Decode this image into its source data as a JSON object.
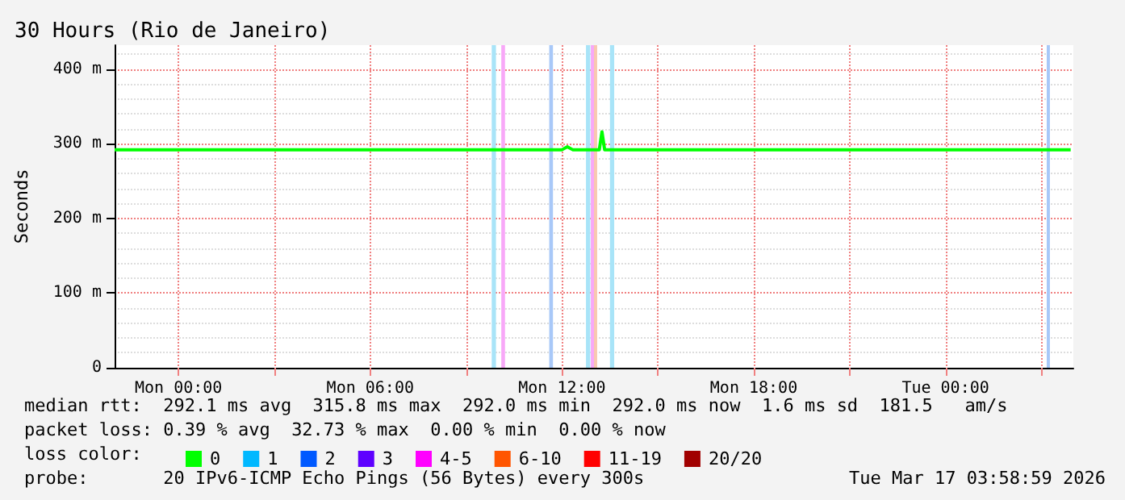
{
  "chart_data": {
    "type": "line",
    "title": "30 Hours (Rio de Janeiro)",
    "ylabel": "Seconds",
    "legend_title": "loss color:",
    "xlim": [
      "2026-03-15T22:00",
      "2026-03-17T04:00"
    ],
    "xticks": [
      {
        "value": "2026-03-16T00:00",
        "label": "Mon 00:00"
      },
      {
        "value": "2026-03-16T03:00",
        "label": null
      },
      {
        "value": "2026-03-16T06:00",
        "label": "Mon 06:00"
      },
      {
        "value": "2026-03-16T09:00",
        "label": null
      },
      {
        "value": "2026-03-16T12:00",
        "label": "Mon 12:00"
      },
      {
        "value": "2026-03-16T15:00",
        "label": null
      },
      {
        "value": "2026-03-16T18:00",
        "label": "Mon 18:00"
      },
      {
        "value": "2026-03-16T21:00",
        "label": null
      },
      {
        "value": "2026-03-17T00:00",
        "label": "Tue 00:00"
      },
      {
        "value": "2026-03-17T03:00",
        "label": null
      }
    ],
    "ylim": [
      0,
      432
    ],
    "yticks": [
      0,
      {
        "value": 100,
        "label": "100 m"
      },
      {
        "value": 200,
        "label": "200 m"
      },
      {
        "value": 300,
        "label": "300 m"
      },
      {
        "value": 400,
        "label": "400 m"
      }
    ],
    "grid": true,
    "legend": "bottom left",
    "series": [
      {
        "name": "0",
        "color": "#00ff00",
        "x": [
          "2026-03-15T22:00",
          "2026-03-16T12:00",
          "2026-03-16T12:10",
          "2026-03-16T12:20",
          "2026-03-16T13:10",
          "2026-03-16T13:15",
          "2026-03-16T13:20",
          "2026-03-17T03:55"
        ],
        "values": [
          292,
          292,
          296,
          292,
          292,
          316,
          292,
          292
        ]
      },
      {
        "name": "1",
        "color": "#00b8ff"
      },
      {
        "name": "2",
        "color": "#0059ff"
      },
      {
        "name": "3",
        "color": "#5e00ff"
      },
      {
        "name": "4-5",
        "color": "#ff00ff"
      },
      {
        "name": "6-10",
        "color": "#ff5500"
      },
      {
        "name": "11-19",
        "color": "#ff0000"
      },
      {
        "name": "20/20",
        "color": "#a10000"
      }
    ],
    "bands": [
      {
        "axis": "x",
        "from": "2026-03-16T09:48",
        "to": "2026-03-16T09:56",
        "color": "#a8e4f8"
      },
      {
        "axis": "x",
        "from": "2026-03-16T10:06",
        "to": "2026-03-16T10:13",
        "color": "#f8a8f8"
      },
      {
        "axis": "x",
        "from": "2026-03-16T11:36",
        "to": "2026-03-16T11:43",
        "color": "#a8c8f8"
      },
      {
        "axis": "x",
        "from": "2026-03-16T12:45",
        "to": "2026-03-16T12:53",
        "color": "#a8e4f8"
      },
      {
        "axis": "x",
        "from": "2026-03-16T12:54",
        "to": "2026-03-16T13:00",
        "color": "#f8a8f8"
      },
      {
        "axis": "x",
        "from": "2026-03-16T13:00",
        "to": "2026-03-16T13:06",
        "color": "#f8c8b0"
      },
      {
        "axis": "x",
        "from": "2026-03-16T13:30",
        "to": "2026-03-16T13:38",
        "color": "#a8e4f8"
      },
      {
        "axis": "x",
        "from": "2026-03-17T03:10",
        "to": "2026-03-17T03:16",
        "color": "#a8c8f8"
      }
    ],
    "annotations": [
      "median rtt:  292.1 ms avg  315.8 ms max  292.0 ms min  292.0 ms now  1.6 ms sd  181.5   am/s",
      "packet loss: 0.39 % avg  32.73 % max  0.00 % min  0.00 % now",
      "probe:       20 IPv6-ICMP Echo Pings (56 Bytes) every 300s",
      "Tue Mar 17 03:58:59 2026"
    ]
  }
}
